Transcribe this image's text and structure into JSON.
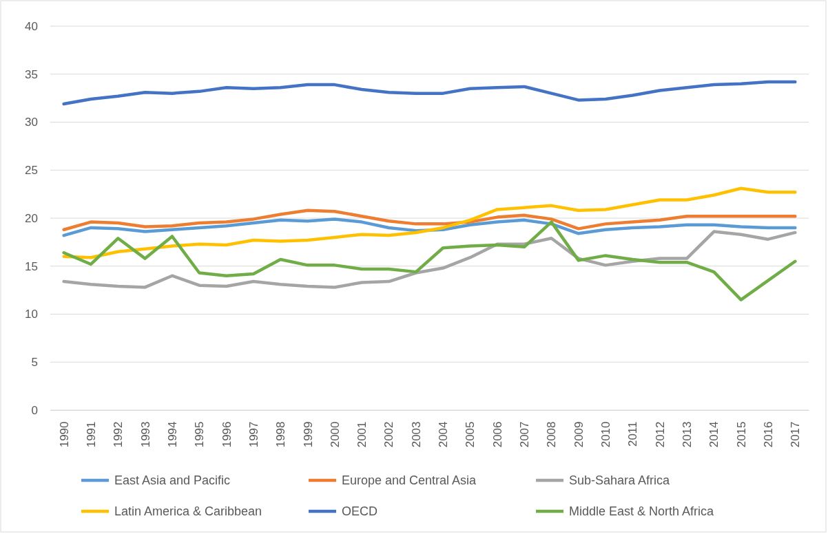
{
  "chart_data": {
    "type": "line",
    "categories": [
      "1990",
      "1991",
      "1992",
      "1993",
      "1994",
      "1995",
      "1996",
      "1997",
      "1998",
      "1999",
      "2000",
      "2001",
      "2002",
      "2003",
      "2004",
      "2005",
      "2006",
      "2007",
      "2008",
      "2009",
      "2010",
      "2011",
      "2012",
      "2013",
      "2014",
      "2015",
      "2016",
      "2017"
    ],
    "series": [
      {
        "name": "East Asia and Pacific",
        "color": "#5b9bd5",
        "values": [
          18.2,
          19.0,
          18.9,
          18.6,
          18.8,
          19.0,
          19.2,
          19.5,
          19.8,
          19.7,
          19.9,
          19.6,
          19.0,
          18.7,
          18.8,
          19.3,
          19.6,
          19.8,
          19.4,
          18.4,
          18.8,
          19.0,
          19.1,
          19.3,
          19.3,
          19.1,
          19.0,
          19.0
        ]
      },
      {
        "name": "Europe and Central Asia",
        "color": "#ed7d31",
        "values": [
          18.8,
          19.6,
          19.5,
          19.1,
          19.2,
          19.5,
          19.6,
          19.9,
          20.4,
          20.8,
          20.7,
          20.2,
          19.7,
          19.4,
          19.4,
          19.6,
          20.1,
          20.3,
          19.9,
          18.9,
          19.4,
          19.6,
          19.8,
          20.2,
          20.2,
          20.2,
          20.2,
          20.2
        ]
      },
      {
        "name": "Sub-Sahara Africa",
        "color": "#a5a5a5",
        "values": [
          13.4,
          13.1,
          12.9,
          12.8,
          14.0,
          13.0,
          12.9,
          13.4,
          13.1,
          12.9,
          12.8,
          13.3,
          13.4,
          14.3,
          14.8,
          15.9,
          17.3,
          17.3,
          17.9,
          15.8,
          15.1,
          15.5,
          15.8,
          15.8,
          18.6,
          18.3,
          17.8,
          18.5
        ]
      },
      {
        "name": "Latin America & Caribbean",
        "color": "#ffc000",
        "values": [
          16.0,
          15.9,
          16.5,
          16.8,
          17.1,
          17.3,
          17.2,
          17.7,
          17.6,
          17.7,
          18.0,
          18.3,
          18.2,
          18.5,
          19.0,
          19.8,
          20.9,
          21.1,
          21.3,
          20.8,
          20.9,
          21.4,
          21.9,
          21.9,
          22.4,
          23.1,
          22.7,
          22.7
        ]
      },
      {
        "name": "OECD",
        "color": "#4472c4",
        "values": [
          31.9,
          32.4,
          32.7,
          33.1,
          33.0,
          33.2,
          33.6,
          33.5,
          33.6,
          33.9,
          33.9,
          33.4,
          33.1,
          33.0,
          33.0,
          33.5,
          33.6,
          33.7,
          33.0,
          32.3,
          32.4,
          32.8,
          33.3,
          33.6,
          33.9,
          34.0,
          34.2,
          34.2
        ]
      },
      {
        "name": "Middle East & North Africa",
        "color": "#70ad47",
        "values": [
          16.4,
          15.2,
          17.9,
          15.8,
          18.1,
          14.3,
          14.0,
          14.2,
          15.7,
          15.1,
          15.1,
          14.7,
          14.7,
          14.4,
          16.9,
          17.1,
          17.2,
          17.0,
          19.6,
          15.6,
          16.1,
          15.7,
          15.4,
          15.4,
          14.4,
          11.5,
          13.5,
          15.5
        ]
      }
    ],
    "ylim": [
      0,
      40
    ],
    "yticks": [
      0,
      5,
      10,
      15,
      20,
      25,
      30,
      35,
      40
    ],
    "grid": "y",
    "legend": "bottom",
    "marker": "none",
    "line_style": "solid"
  }
}
